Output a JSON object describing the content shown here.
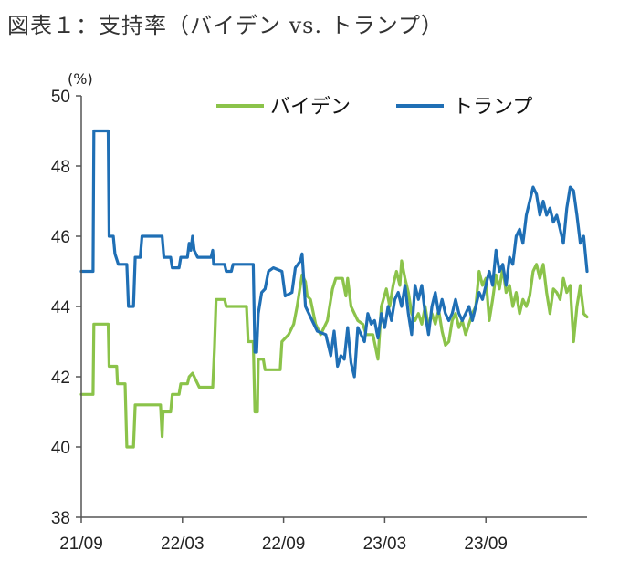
{
  "figure_title": "図表１：支持率（バイデン vs. トランプ）",
  "colors": {
    "biden": "#8BC34A",
    "trump": "#1F6FB5",
    "axis": "#555555"
  },
  "chart_data": {
    "type": "line",
    "unit_label": "(%)",
    "ylim": [
      38,
      50
    ],
    "yticks": [
      "50",
      "48",
      "46",
      "44",
      "42",
      "40",
      "38"
    ],
    "xlim": [
      0,
      30
    ],
    "xticks": [
      {
        "label": "21/09",
        "x": 0
      },
      {
        "label": "22/03",
        "x": 6
      },
      {
        "label": "22/09",
        "x": 12
      },
      {
        "label": "23/03",
        "x": 18
      },
      {
        "label": "23/09",
        "x": 24
      }
    ],
    "legend_placement": "top-right",
    "series": [
      {
        "name": "バイデン",
        "color_key": "biden",
        "points": [
          [
            0,
            41.5
          ],
          [
            0.7,
            41.5
          ],
          [
            0.75,
            43.5
          ],
          [
            1.6,
            43.5
          ],
          [
            1.65,
            42.3
          ],
          [
            2.1,
            42.3
          ],
          [
            2.15,
            41.8
          ],
          [
            2.6,
            41.8
          ],
          [
            2.7,
            40.0
          ],
          [
            3.1,
            40.0
          ],
          [
            3.2,
            41.2
          ],
          [
            4.7,
            41.2
          ],
          [
            4.8,
            40.3
          ],
          [
            4.85,
            41.0
          ],
          [
            5.3,
            41.0
          ],
          [
            5.4,
            41.5
          ],
          [
            5.8,
            41.5
          ],
          [
            5.9,
            41.8
          ],
          [
            6.3,
            41.8
          ],
          [
            6.4,
            42.0
          ],
          [
            6.6,
            42.1
          ],
          [
            6.8,
            41.9
          ],
          [
            7.0,
            41.7
          ],
          [
            7.8,
            41.7
          ],
          [
            7.9,
            42.8
          ],
          [
            8.0,
            44.2
          ],
          [
            8.5,
            44.2
          ],
          [
            8.6,
            44.0
          ],
          [
            9.8,
            44.0
          ],
          [
            9.9,
            43.0
          ],
          [
            10.2,
            43.0
          ],
          [
            10.3,
            41.0
          ],
          [
            10.45,
            41.0
          ],
          [
            10.5,
            42.5
          ],
          [
            10.8,
            42.5
          ],
          [
            10.9,
            42.2
          ],
          [
            11.8,
            42.2
          ],
          [
            11.9,
            43.0
          ],
          [
            12.3,
            43.2
          ],
          [
            12.6,
            43.5
          ],
          [
            12.8,
            44.0
          ],
          [
            12.9,
            44.3
          ],
          [
            13.1,
            44.9
          ],
          [
            13.3,
            44.7
          ],
          [
            13.4,
            44.3
          ],
          [
            13.6,
            44.2
          ],
          [
            13.9,
            43.5
          ],
          [
            14.2,
            43.2
          ],
          [
            14.6,
            43.6
          ],
          [
            14.9,
            44.5
          ],
          [
            15.1,
            44.8
          ],
          [
            15.5,
            44.8
          ],
          [
            15.7,
            44.3
          ],
          [
            15.8,
            44.8
          ],
          [
            16.0,
            44.0
          ],
          [
            16.4,
            43.6
          ],
          [
            16.7,
            43.5
          ],
          [
            16.9,
            43.2
          ],
          [
            17.3,
            43.2
          ],
          [
            17.6,
            42.5
          ],
          [
            17.8,
            44.0
          ],
          [
            18.1,
            44.5
          ],
          [
            18.3,
            44.0
          ],
          [
            18.5,
            44.6
          ],
          [
            18.7,
            45.0
          ],
          [
            18.9,
            44.6
          ],
          [
            19.0,
            45.3
          ],
          [
            19.2,
            44.8
          ],
          [
            19.4,
            44.4
          ],
          [
            19.6,
            43.8
          ],
          [
            19.8,
            43.6
          ],
          [
            20.0,
            43.8
          ],
          [
            20.2,
            43.5
          ],
          [
            20.4,
            44.0
          ],
          [
            20.6,
            43.4
          ],
          [
            20.8,
            43.8
          ],
          [
            21.0,
            43.5
          ],
          [
            21.2,
            43.9
          ],
          [
            21.4,
            43.3
          ],
          [
            21.6,
            42.9
          ],
          [
            21.8,
            43.0
          ],
          [
            22.0,
            43.6
          ],
          [
            22.2,
            43.8
          ],
          [
            22.4,
            43.4
          ],
          [
            22.6,
            43.6
          ],
          [
            22.8,
            43.2
          ],
          [
            23.0,
            43.5
          ],
          [
            23.2,
            43.8
          ],
          [
            23.4,
            44.0
          ],
          [
            23.6,
            45.0
          ],
          [
            23.8,
            44.6
          ],
          [
            24.0,
            44.8
          ],
          [
            24.2,
            43.6
          ],
          [
            24.4,
            44.2
          ],
          [
            24.6,
            44.9
          ],
          [
            24.8,
            44.5
          ],
          [
            25.0,
            45.1
          ],
          [
            25.2,
            44.4
          ],
          [
            25.4,
            44.6
          ],
          [
            25.6,
            44.0
          ],
          [
            25.8,
            44.4
          ],
          [
            26.0,
            43.8
          ],
          [
            26.2,
            44.2
          ],
          [
            26.4,
            44.0
          ],
          [
            26.6,
            44.3
          ],
          [
            26.8,
            45.0
          ],
          [
            27.0,
            45.2
          ],
          [
            27.2,
            44.8
          ],
          [
            27.4,
            45.2
          ],
          [
            27.6,
            44.4
          ],
          [
            27.8,
            43.8
          ],
          [
            28.0,
            44.5
          ],
          [
            28.2,
            44.4
          ],
          [
            28.4,
            44.2
          ],
          [
            28.6,
            44.8
          ],
          [
            28.8,
            44.4
          ],
          [
            29.0,
            44.6
          ],
          [
            29.2,
            43.0
          ],
          [
            29.4,
            44.0
          ],
          [
            29.6,
            44.6
          ],
          [
            29.8,
            43.8
          ],
          [
            30.0,
            43.7
          ]
        ]
      },
      {
        "name": "トランプ",
        "color_key": "trump",
        "points": [
          [
            0,
            45.0
          ],
          [
            0.7,
            45.0
          ],
          [
            0.75,
            49.0
          ],
          [
            1.6,
            49.0
          ],
          [
            1.65,
            46.0
          ],
          [
            1.9,
            46.0
          ],
          [
            2.0,
            45.5
          ],
          [
            2.2,
            45.2
          ],
          [
            2.7,
            45.2
          ],
          [
            2.8,
            44.0
          ],
          [
            3.1,
            44.0
          ],
          [
            3.2,
            45.4
          ],
          [
            3.5,
            45.4
          ],
          [
            3.6,
            46.0
          ],
          [
            4.8,
            46.0
          ],
          [
            4.9,
            45.4
          ],
          [
            5.3,
            45.4
          ],
          [
            5.4,
            45.1
          ],
          [
            5.8,
            45.1
          ],
          [
            5.9,
            45.4
          ],
          [
            6.3,
            45.4
          ],
          [
            6.4,
            45.8
          ],
          [
            6.5,
            45.6
          ],
          [
            6.6,
            46.0
          ],
          [
            6.7,
            45.6
          ],
          [
            6.9,
            45.4
          ],
          [
            7.7,
            45.4
          ],
          [
            7.8,
            45.6
          ],
          [
            7.85,
            45.2
          ],
          [
            8.5,
            45.2
          ],
          [
            8.6,
            45.0
          ],
          [
            8.9,
            45.0
          ],
          [
            9.0,
            45.2
          ],
          [
            10.2,
            45.2
          ],
          [
            10.3,
            42.7
          ],
          [
            10.4,
            42.7
          ],
          [
            10.5,
            43.8
          ],
          [
            10.7,
            44.4
          ],
          [
            10.9,
            44.5
          ],
          [
            11.1,
            45.0
          ],
          [
            11.4,
            45.1
          ],
          [
            11.9,
            45.0
          ],
          [
            12.1,
            44.3
          ],
          [
            12.5,
            44.4
          ],
          [
            12.7,
            45.1
          ],
          [
            13.0,
            45.3
          ],
          [
            13.1,
            45.5
          ],
          [
            13.3,
            44.0
          ],
          [
            13.6,
            43.7
          ],
          [
            14.0,
            43.3
          ],
          [
            14.5,
            43.2
          ],
          [
            14.8,
            42.6
          ],
          [
            15.0,
            43.3
          ],
          [
            15.2,
            42.3
          ],
          [
            15.4,
            42.6
          ],
          [
            15.6,
            42.5
          ],
          [
            15.8,
            43.4
          ],
          [
            16.0,
            42.4
          ],
          [
            16.2,
            42.0
          ],
          [
            16.4,
            43.4
          ],
          [
            16.6,
            43.2
          ],
          [
            16.8,
            43.0
          ],
          [
            17.0,
            43.8
          ],
          [
            17.2,
            43.5
          ],
          [
            17.4,
            43.6
          ],
          [
            17.6,
            43.1
          ],
          [
            17.8,
            43.8
          ],
          [
            18.0,
            43.4
          ],
          [
            18.2,
            44.0
          ],
          [
            18.4,
            43.6
          ],
          [
            18.6,
            44.2
          ],
          [
            18.8,
            44.4
          ],
          [
            19.0,
            44.0
          ],
          [
            19.2,
            44.6
          ],
          [
            19.4,
            43.8
          ],
          [
            19.6,
            43.2
          ],
          [
            19.8,
            44.6
          ],
          [
            20.0,
            44.2
          ],
          [
            20.2,
            44.6
          ],
          [
            20.4,
            43.8
          ],
          [
            20.6,
            43.2
          ],
          [
            20.8,
            44.0
          ],
          [
            21.0,
            44.4
          ],
          [
            21.2,
            43.8
          ],
          [
            21.4,
            44.2
          ],
          [
            21.6,
            43.8
          ],
          [
            21.8,
            43.6
          ],
          [
            22.0,
            43.8
          ],
          [
            22.2,
            44.2
          ],
          [
            22.4,
            43.8
          ],
          [
            22.6,
            43.6
          ],
          [
            22.8,
            43.8
          ],
          [
            23.0,
            44.0
          ],
          [
            23.2,
            43.6
          ],
          [
            23.4,
            44.0
          ],
          [
            23.6,
            44.4
          ],
          [
            23.8,
            44.2
          ],
          [
            24.0,
            44.6
          ],
          [
            24.2,
            45.0
          ],
          [
            24.4,
            44.6
          ],
          [
            24.6,
            45.6
          ],
          [
            24.8,
            45.0
          ],
          [
            25.0,
            45.2
          ],
          [
            25.2,
            44.6
          ],
          [
            25.4,
            45.4
          ],
          [
            25.6,
            45.2
          ],
          [
            25.8,
            46.0
          ],
          [
            26.0,
            46.2
          ],
          [
            26.2,
            45.8
          ],
          [
            26.4,
            46.6
          ],
          [
            26.6,
            47.0
          ],
          [
            26.8,
            47.4
          ],
          [
            27.0,
            47.2
          ],
          [
            27.2,
            46.6
          ],
          [
            27.4,
            47.0
          ],
          [
            27.6,
            46.6
          ],
          [
            27.8,
            46.8
          ],
          [
            28.0,
            46.4
          ],
          [
            28.2,
            46.6
          ],
          [
            28.4,
            46.2
          ],
          [
            28.6,
            45.8
          ],
          [
            28.8,
            46.8
          ],
          [
            29.0,
            47.4
          ],
          [
            29.2,
            47.3
          ],
          [
            29.4,
            46.6
          ],
          [
            29.6,
            45.8
          ],
          [
            29.8,
            46.0
          ],
          [
            30.0,
            45.0
          ]
        ]
      }
    ]
  }
}
